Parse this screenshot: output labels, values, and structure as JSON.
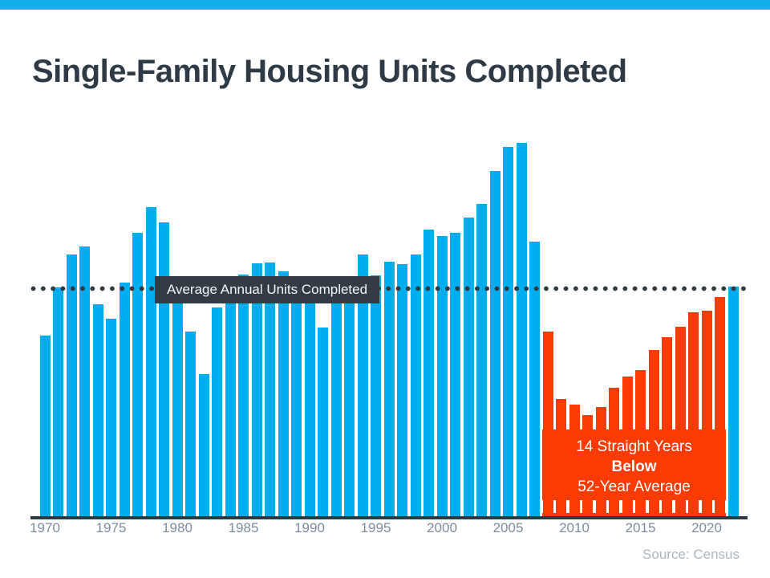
{
  "page": {
    "top_stripe_color": "#14AEEC"
  },
  "header": {
    "title": "Single-Family Housing Units Completed",
    "title_color": "#2E3A45"
  },
  "chart_data": {
    "type": "bar",
    "title": "Single-Family Housing Units Completed",
    "xlabel": "",
    "ylabel": "",
    "unit_note": "annual single-family housing units completed (thousands, estimated from bar heights)",
    "x": [
      1970,
      1971,
      1972,
      1973,
      1974,
      1975,
      1976,
      1977,
      1978,
      1979,
      1980,
      1981,
      1982,
      1983,
      1984,
      1985,
      1986,
      1987,
      1988,
      1989,
      1990,
      1991,
      1992,
      1993,
      1994,
      1995,
      1996,
      1997,
      1998,
      1999,
      2000,
      2001,
      2002,
      2003,
      2004,
      2005,
      2006,
      2007,
      2008,
      2009,
      2010,
      2011,
      2012,
      2013,
      2014,
      2015,
      2016,
      2017,
      2018,
      2019,
      2020,
      2021,
      2022
    ],
    "values": [
      802,
      1014,
      1160,
      1197,
      940,
      875,
      1034,
      1258,
      1369,
      1301,
      957,
      818,
      631,
      924,
      1025,
      1072,
      1120,
      1123,
      1085,
      1026,
      966,
      838,
      964,
      1039,
      1160,
      1066,
      1129,
      1116,
      1160,
      1270,
      1242,
      1256,
      1325,
      1386,
      1531,
      1636,
      1654,
      1218,
      819,
      520,
      496,
      447,
      483,
      569,
      620,
      648,
      738,
      795,
      840,
      903,
      912,
      971,
      1019
    ],
    "x_tick_labels": [
      "1970",
      "1975",
      "1980",
      "1985",
      "1990",
      "1995",
      "2000",
      "2005",
      "2010",
      "2015",
      "2020"
    ],
    "bar_color_default": "#00AEEF",
    "bar_color_below_average": "#FA3C04",
    "below_average_years_range": [
      2008,
      2021
    ],
    "average_line": {
      "label": "Average Annual Units Completed",
      "value_estimate": 1009,
      "style": "dotted",
      "color": "#2E3A42",
      "label_box_color": "#333B44"
    },
    "annotation_below_average": {
      "line1": "14 Straight Years",
      "line2": "Below",
      "line3": "52-Year Average",
      "text_color": "#ffffff"
    },
    "grid": "off",
    "legend": "none",
    "ylim": [
      0,
      1700
    ]
  },
  "footer": {
    "source": "Source: Census"
  }
}
